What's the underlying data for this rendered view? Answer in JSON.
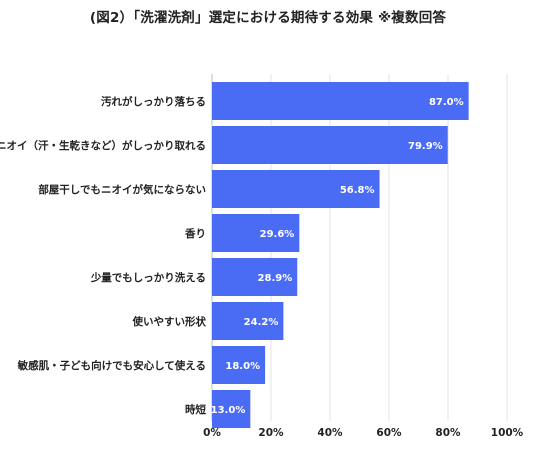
{
  "chart_data": {
    "type": "bar",
    "orientation": "horizontal",
    "title": "(図2）「洗濯洗剤」選定における期待する効果 ※複数回答",
    "categories": [
      "汚れがしっかり落ちる",
      "ニオイ（汗・生乾きなど）がしっかり取れる",
      "部屋干しでもニオイが気にならない",
      "香り",
      "少量でもしっかり洗える",
      "使いやすい形状",
      "敏感肌・子ども向けでも安心して使える",
      "時短"
    ],
    "values": [
      87.0,
      79.9,
      56.8,
      29.6,
      28.9,
      24.2,
      18.0,
      13.0
    ],
    "value_labels": [
      "87.0%",
      "79.9%",
      "56.8%",
      "29.6%",
      "28.9%",
      "24.2%",
      "18.0%",
      "13.0%"
    ],
    "x_ticks": [
      "0%",
      "20%",
      "40%",
      "60%",
      "80%",
      "100%"
    ],
    "xlim": [
      0,
      100
    ],
    "grid": "vertical",
    "bar_color": "#4a6cf5",
    "xlabel": "",
    "ylabel": ""
  }
}
